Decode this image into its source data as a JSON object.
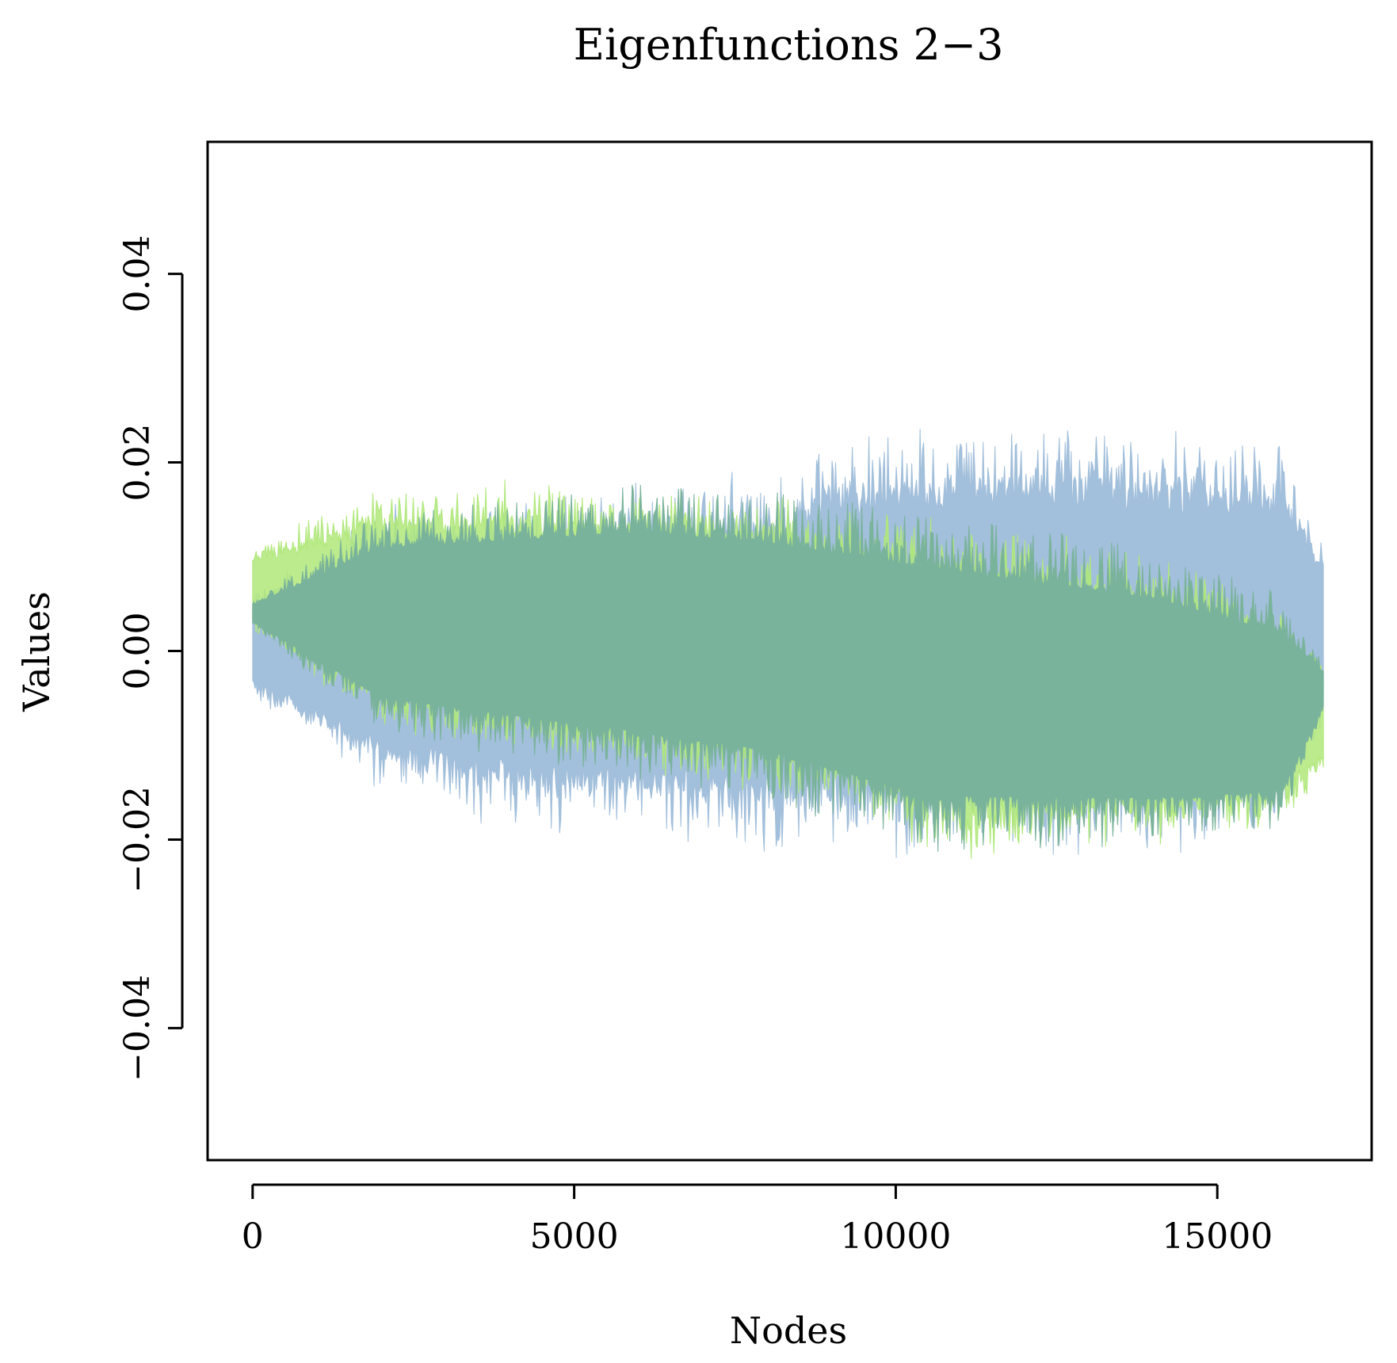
{
  "chart_data": {
    "type": "line",
    "title": "Eigenfunctions 2−3",
    "xlabel": "Nodes",
    "ylabel": "Values",
    "xlim": [
      -700,
      17400
    ],
    "ylim": [
      -0.054,
      0.054
    ],
    "x_ticks": [
      0,
      5000,
      10000,
      15000
    ],
    "x_tick_labels": [
      "0",
      "5000",
      "10000",
      "15000"
    ],
    "y_ticks": [
      -0.04,
      -0.02,
      0.0,
      0.02,
      0.04
    ],
    "y_tick_labels": [
      "−0.04",
      "−0.02",
      "0.00",
      "0.02",
      "0.04"
    ],
    "grid": false,
    "legend": "none",
    "series": [
      {
        "color": "#a2bfdb",
        "x": [
          0,
          2000,
          4000,
          6000,
          8000,
          9000,
          10000,
          12000,
          14000,
          16000,
          16650
        ],
        "upper": [
          0.005,
          0.012,
          0.013,
          0.014,
          0.015,
          0.018,
          0.019,
          0.02,
          0.019,
          0.018,
          0.01
        ],
        "lower": [
          -0.004,
          -0.012,
          -0.015,
          -0.016,
          -0.017,
          -0.017,
          -0.017,
          -0.017,
          -0.017,
          -0.016,
          -0.006
        ]
      },
      {
        "color": "#b0e87a",
        "x": [
          0,
          2000,
          4000,
          6000,
          8000,
          10000,
          11000,
          12000,
          14000,
          16000,
          16650
        ],
        "upper": [
          0.01,
          0.015,
          0.015,
          0.014,
          0.013,
          0.011,
          0.01,
          0.009,
          0.007,
          0.003,
          -0.002
        ],
        "lower": [
          0.003,
          -0.006,
          -0.008,
          -0.01,
          -0.012,
          -0.016,
          -0.019,
          -0.018,
          -0.018,
          -0.016,
          -0.012
        ]
      }
    ],
    "overlap_color": "#7ab39b"
  }
}
